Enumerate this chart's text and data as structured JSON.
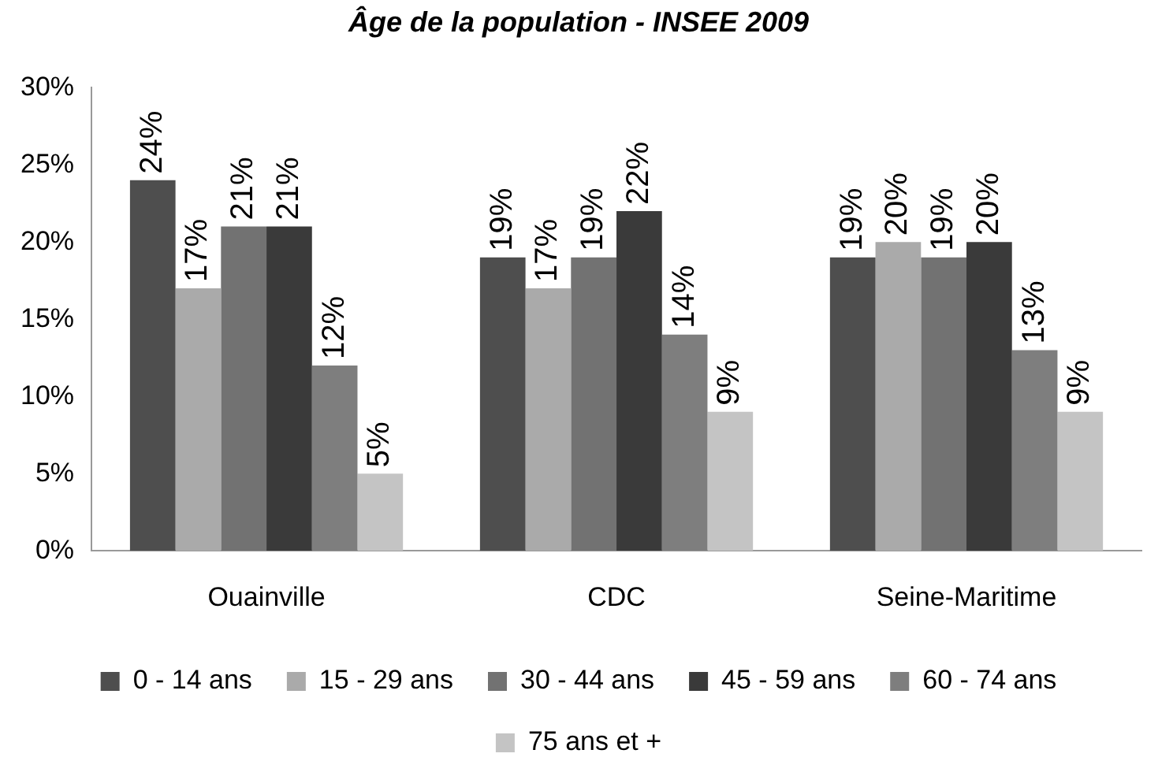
{
  "chart_data": {
    "type": "bar",
    "title": "Âge de la population - INSEE 2009",
    "categories": [
      "Ouainville",
      "CDC",
      "Seine-Maritime"
    ],
    "series": [
      {
        "name": "0 - 14 ans",
        "color": "#4e4e4e",
        "values": [
          24,
          19,
          19
        ],
        "value_labels": [
          "24%",
          "19%",
          "19%"
        ]
      },
      {
        "name": "15 - 29 ans",
        "color": "#aaaaaa",
        "values": [
          17,
          17,
          20
        ],
        "value_labels": [
          "17%",
          "17%",
          "20%"
        ]
      },
      {
        "name": "30 - 44 ans",
        "color": "#727272",
        "values": [
          21,
          19,
          19
        ],
        "value_labels": [
          "21%",
          "19%",
          "19%"
        ]
      },
      {
        "name": "45 - 59 ans",
        "color": "#3a3a3a",
        "values": [
          21,
          22,
          20
        ],
        "value_labels": [
          "21%",
          "22%",
          "20%"
        ]
      },
      {
        "name": "60 - 74 ans",
        "color": "#7e7e7e",
        "values": [
          12,
          14,
          13
        ],
        "value_labels": [
          "12%",
          "14%",
          "13%"
        ]
      },
      {
        "name": "75 ans et +",
        "color": "#c4c4c4",
        "values": [
          5,
          9,
          9
        ],
        "value_labels": [
          "5%",
          "9%",
          "9%"
        ]
      }
    ],
    "ylim": [
      0,
      30
    ],
    "yticks": [
      {
        "value": 0,
        "label": "0%"
      },
      {
        "value": 5,
        "label": "5%"
      },
      {
        "value": 10,
        "label": "10%"
      },
      {
        "value": 15,
        "label": "15%"
      },
      {
        "value": 20,
        "label": "20%"
      },
      {
        "value": 25,
        "label": "25%"
      },
      {
        "value": 30,
        "label": "30%"
      }
    ],
    "grid": false,
    "legend": "bottom"
  }
}
